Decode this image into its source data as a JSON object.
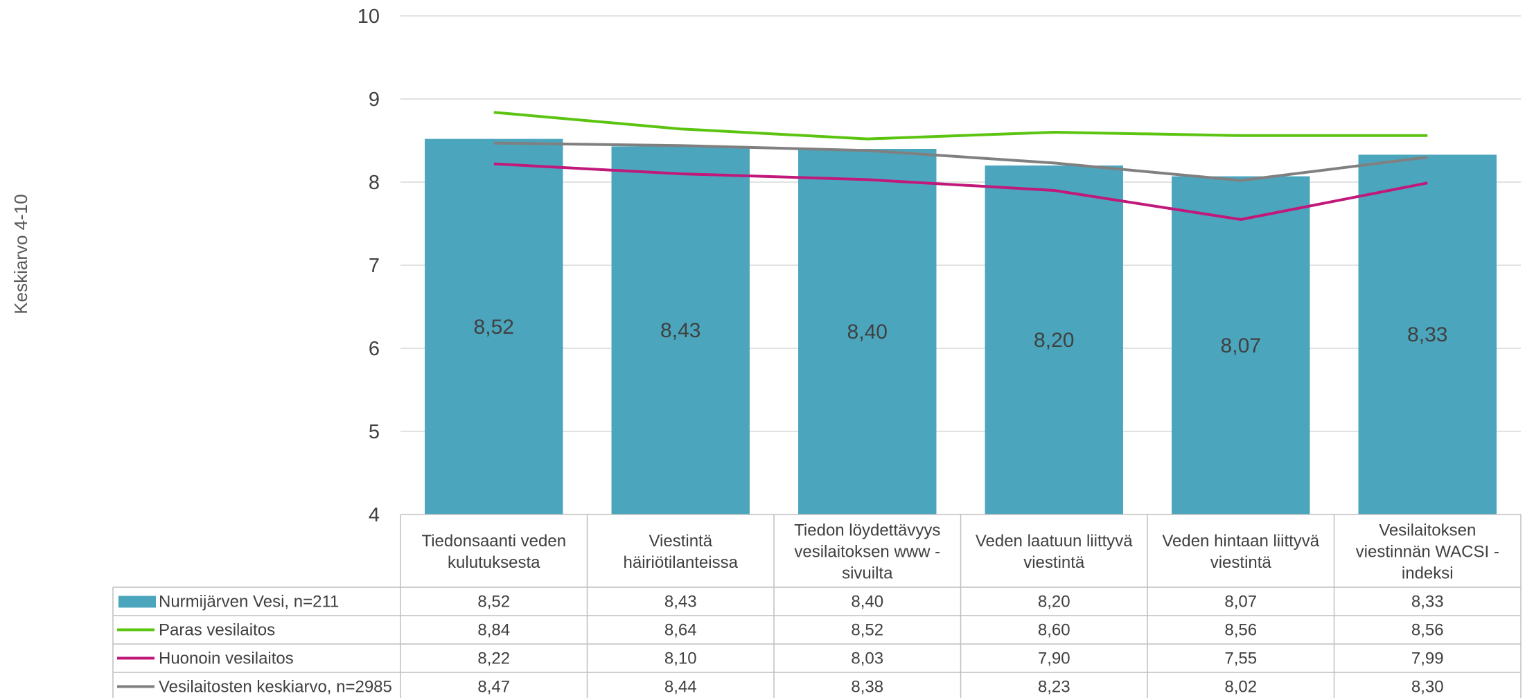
{
  "chart_data": {
    "type": "bar",
    "ylabel": "Keskiarvo 4-10",
    "ylim": [
      4,
      10
    ],
    "yticks": [
      4,
      5,
      6,
      7,
      8,
      9,
      10
    ],
    "grid": true,
    "categories": [
      [
        "Tiedonsaanti veden",
        "kulutuksesta"
      ],
      [
        "Viestintä",
        "häiriötilanteissa"
      ],
      [
        "Tiedon löydettävyys",
        "vesilaitoksen www -",
        "sivuilta"
      ],
      [
        "Veden laatuun liittyvä",
        "viestintä"
      ],
      [
        "Veden hintaan liittyvä",
        "viestintä"
      ],
      [
        "Vesilaitoksen",
        "viestinnän WACSI -",
        "indeksi"
      ]
    ],
    "series": [
      {
        "name": "Nurmijärven Vesi, n=211",
        "kind": "bar",
        "color": "#4BA6BD",
        "values": [
          8.52,
          8.43,
          8.4,
          8.2,
          8.07,
          8.33
        ],
        "labels": [
          "8,52",
          "8,43",
          "8,40",
          "8,20",
          "8,07",
          "8,33"
        ]
      },
      {
        "name": "Paras vesilaitos",
        "kind": "line",
        "color": "#5BC411",
        "values": [
          8.84,
          8.64,
          8.52,
          8.6,
          8.56,
          8.56
        ],
        "labels": [
          "8,84",
          "8,64",
          "8,52",
          "8,60",
          "8,56",
          "8,56"
        ]
      },
      {
        "name": "Huonoin vesilaitos",
        "kind": "line",
        "color": "#C0197A",
        "values": [
          8.22,
          8.1,
          8.03,
          7.9,
          7.55,
          7.99
        ],
        "labels": [
          "8,22",
          "8,10",
          "8,03",
          "7,90",
          "7,55",
          "7,99"
        ]
      },
      {
        "name": "Vesilaitosten keskiarvo, n=2985",
        "kind": "line",
        "color": "#808080",
        "values": [
          8.47,
          8.44,
          8.38,
          8.23,
          8.02,
          8.3
        ],
        "labels": [
          "8,47",
          "8,44",
          "8,38",
          "8,23",
          "8,02",
          "8,30"
        ]
      }
    ],
    "legend": "data-table"
  }
}
